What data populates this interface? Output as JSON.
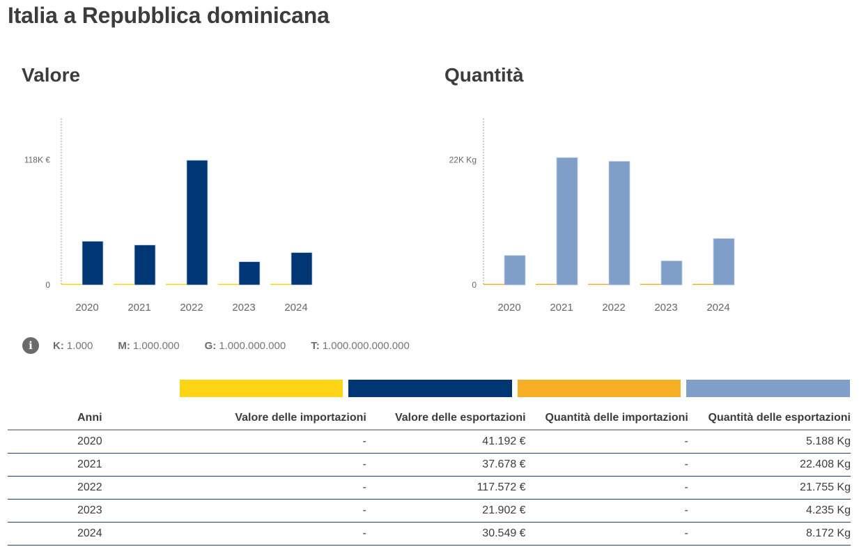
{
  "page": {
    "title": "Italia a Repubblica dominicana"
  },
  "colors": {
    "import_value": "#fdd416",
    "export_value": "#003673",
    "import_quantity": "#f6ae24",
    "export_quantity": "#7f9fc8"
  },
  "chart_data": [
    {
      "type": "bar",
      "title": "Valore",
      "categories": [
        "2020",
        "2021",
        "2022",
        "2023",
        "2024"
      ],
      "series": [
        {
          "name": "Valore delle importazioni",
          "color": "#fdd416",
          "values": [
            0,
            0,
            0,
            0,
            0
          ]
        },
        {
          "name": "Valore delle esportazioni",
          "color": "#003673",
          "values": [
            41192,
            37678,
            117572,
            21902,
            30549
          ]
        }
      ],
      "yticks": [
        {
          "value": 0,
          "label": "0"
        },
        {
          "value": 118000,
          "label": "118K €"
        }
      ],
      "ylim": [
        0,
        157000
      ],
      "xlabel": "",
      "ylabel": "",
      "grid": false
    },
    {
      "type": "bar",
      "title": "Quantità",
      "categories": [
        "2020",
        "2021",
        "2022",
        "2023",
        "2024"
      ],
      "series": [
        {
          "name": "Quantità delle importazioni",
          "color": "#f6ae24",
          "values": [
            0,
            0,
            0,
            0,
            0
          ]
        },
        {
          "name": "Quantità delle esportazioni",
          "color": "#7f9fc8",
          "values": [
            5188,
            22408,
            21755,
            4235,
            8172
          ]
        }
      ],
      "yticks": [
        {
          "value": 0,
          "label": "0"
        },
        {
          "value": 22000,
          "label": "22K Kg"
        }
      ],
      "ylim": [
        0,
        29300
      ],
      "xlabel": "",
      "ylabel": "",
      "grid": false
    }
  ],
  "units_legend": {
    "icon": "info-icon",
    "items": [
      {
        "key": "K:",
        "value": "1.000"
      },
      {
        "key": "M:",
        "value": "1.000.000"
      },
      {
        "key": "G:",
        "value": "1.000.000.000"
      },
      {
        "key": "T:",
        "value": "1.000.000.000.000"
      }
    ]
  },
  "table": {
    "headers": [
      "Anni",
      "Valore delle importazioni",
      "Valore delle esportazioni",
      "Quantità delle importazioni",
      "Quantità delle esportazioni"
    ],
    "rows": [
      [
        "2020",
        "-",
        "41.192 €",
        "-",
        "5.188 Kg"
      ],
      [
        "2021",
        "-",
        "37.678 €",
        "-",
        "22.408 Kg"
      ],
      [
        "2022",
        "-",
        "117.572 €",
        "-",
        "21.755 Kg"
      ],
      [
        "2023",
        "-",
        "21.902 €",
        "-",
        "4.235 Kg"
      ],
      [
        "2024",
        "-",
        "30.549 €",
        "-",
        "8.172 Kg"
      ]
    ]
  }
}
